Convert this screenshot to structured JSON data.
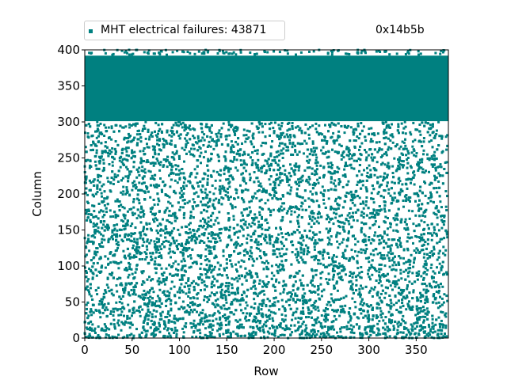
{
  "chart_data": {
    "type": "scatter",
    "xlabel": "Row",
    "ylabel": "Column",
    "xlim": [
      0,
      384
    ],
    "ylim": [
      0,
      400
    ],
    "xticks": [
      0,
      50,
      100,
      150,
      200,
      250,
      300,
      350
    ],
    "yticks": [
      0,
      50,
      100,
      150,
      200,
      250,
      300,
      350,
      400
    ],
    "legend": {
      "label": "MHT electrical failures: 43871",
      "placement": "top-left"
    },
    "annotation": "0x14b5b",
    "color": "#008080",
    "total_points": 43871,
    "dense_region": {
      "x": [
        0,
        383
      ],
      "y": [
        301,
        392
      ]
    },
    "sparse_regions": [
      {
        "x": [
          0,
          383
        ],
        "y": [
          0,
          300
        ],
        "approx_points": 7000
      },
      {
        "x": [
          0,
          383
        ],
        "y": [
          393,
          400
        ],
        "approx_points": 120
      }
    ]
  }
}
